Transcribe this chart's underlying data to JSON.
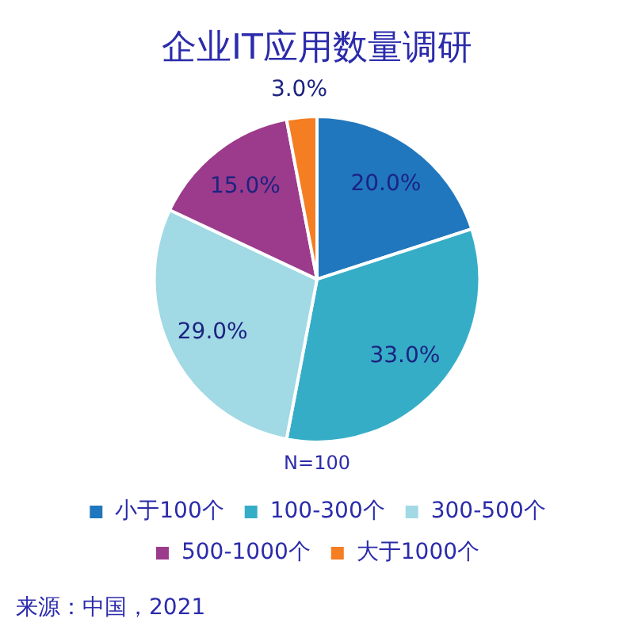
{
  "chart_data": {
    "type": "pie",
    "title": "企业IT应用数量调研",
    "categories": [
      "小于100个",
      "100-300个",
      "300-500个",
      "500-1000个",
      "大于1000个"
    ],
    "values": [
      20,
      33,
      29,
      15,
      3
    ],
    "colors": [
      "#2077bd",
      "#36adc7",
      "#a1d9e5",
      "#9c3b8c",
      "#f57d22"
    ],
    "value_labels": [
      "20.0%",
      "33.0%",
      "29.0%",
      "15.0%",
      "3.0%"
    ],
    "legend": "bottom",
    "annotations": [
      "N=100",
      "来源：中国，2021"
    ]
  }
}
